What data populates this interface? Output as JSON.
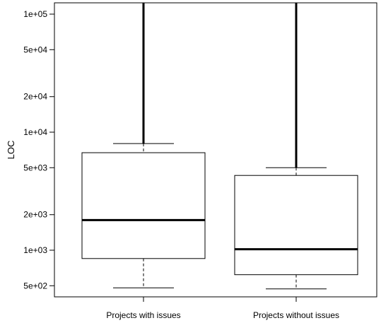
{
  "chart_data": {
    "type": "boxplot",
    "title": "",
    "xlabel": "",
    "ylabel": "LOC",
    "y_scale": "log",
    "ylim": [
      450,
      130000
    ],
    "grid": false,
    "legend": "none",
    "y_ticks": [
      500,
      1000,
      2000,
      5000,
      10000,
      20000,
      50000,
      100000
    ],
    "y_tick_labels": [
      "5e+02",
      "1e+03",
      "2e+03",
      "5e+03",
      "1e+04",
      "2e+04",
      "5e+04",
      "1e+05"
    ],
    "categories": [
      "Projects with issues",
      "Projects without issues"
    ],
    "boxes": [
      {
        "lower_whisker": 480,
        "q1": 850,
        "median": 1800,
        "q3": 6700,
        "upper_whisker": 8000,
        "outliers_extend_to": 130000
      },
      {
        "lower_whisker": 470,
        "q1": 620,
        "median": 1020,
        "q3": 4300,
        "upper_whisker": 5000,
        "outliers_extend_to": 130000
      }
    ]
  }
}
